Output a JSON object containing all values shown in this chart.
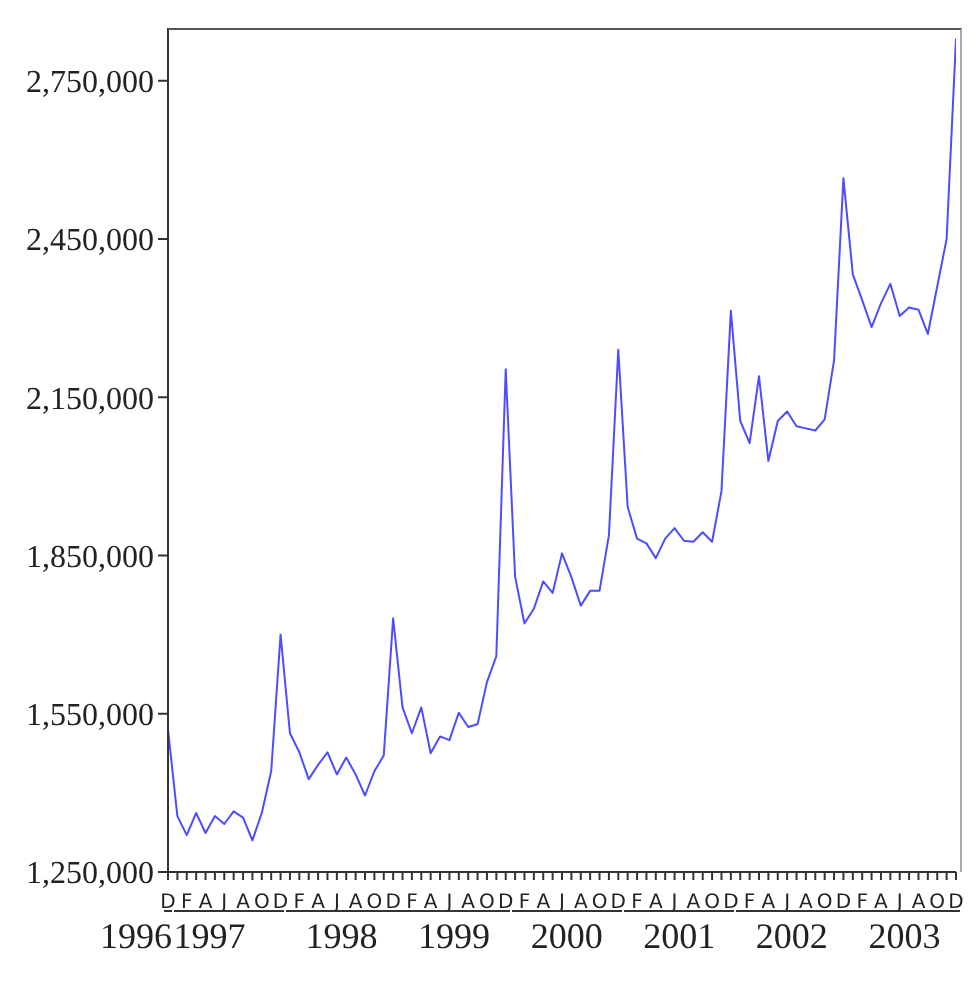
{
  "chart_data": {
    "type": "line",
    "categories": [
      "D",
      null,
      "F",
      null,
      "A",
      null,
      "J",
      null,
      "A",
      null,
      "O",
      null,
      "D",
      null,
      "F",
      null,
      "A",
      null,
      "J",
      null,
      "A",
      null,
      "O",
      null,
      "D",
      null,
      "F",
      null,
      "A",
      null,
      "J",
      null,
      "A",
      null,
      "O",
      null,
      "D",
      null,
      "F",
      null,
      "A",
      null,
      "J",
      null,
      "A",
      null,
      "O",
      null,
      "D",
      null,
      "F",
      null,
      "A",
      null,
      "J",
      null,
      "A",
      null,
      "O",
      null,
      "D",
      null,
      "F",
      null,
      "A",
      null,
      "J",
      null,
      "A",
      null,
      "O",
      null,
      "D",
      null,
      "F",
      null,
      "A",
      null,
      "J",
      null,
      "A",
      null,
      "O",
      null,
      "D"
    ],
    "series": [
      {
        "color": "#4d4dff",
        "values": [
          1520000,
          1356000,
          1320000,
          1362000,
          1324000,
          1356000,
          1341000,
          1365000,
          1353000,
          1310000,
          1362000,
          1441000,
          1700000,
          1513000,
          1477000,
          1426000,
          1453000,
          1477000,
          1435000,
          1467000,
          1435000,
          1395000,
          1441000,
          1471000,
          1731000,
          1562000,
          1513000,
          1562000,
          1475000,
          1507000,
          1500000,
          1552000,
          1525000,
          1530000,
          1610000,
          1659000,
          2203000,
          1810000,
          1721000,
          1749000,
          1801000,
          1779000,
          1854000,
          1809000,
          1755000,
          1783000,
          1783000,
          1888000,
          2240000,
          1942000,
          1882000,
          1873000,
          1845000,
          1882000,
          1902000,
          1878000,
          1876000,
          1894000,
          1876000,
          1972000,
          2314000,
          2105000,
          2063000,
          2190000,
          2029000,
          2105000,
          2123000,
          2095000,
          2091000,
          2087000,
          2108000,
          2220000,
          2565000,
          2383000,
          2334000,
          2283000,
          2328000,
          2365000,
          2304000,
          2320000,
          2316000,
          2270000,
          2360000,
          2450000,
          2830000
        ]
      }
    ],
    "ylim": [
      1250000,
      2850000
    ],
    "yticks": [
      {
        "value": 1250000,
        "label": "1,250,000"
      },
      {
        "value": 1550000,
        "label": "1,550,000"
      },
      {
        "value": 1850000,
        "label": "1,850,000"
      },
      {
        "value": 2150000,
        "label": "2,150,000"
      },
      {
        "value": 2450000,
        "label": "2,450,000"
      },
      {
        "value": 2750000,
        "label": "2,750,000"
      }
    ],
    "annotations": [
      "1996",
      "1997",
      "1998",
      "1999",
      "2000",
      "2001",
      "2002",
      "2003"
    ],
    "grid": false,
    "legend": false,
    "marker": "none",
    "line_style": "solid"
  }
}
